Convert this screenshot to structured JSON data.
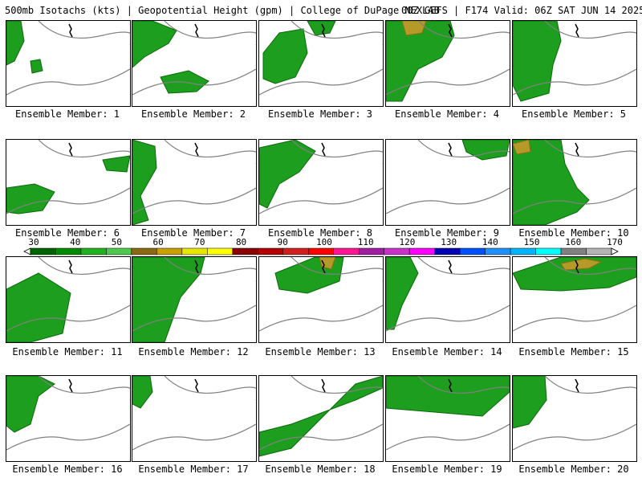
{
  "header": {
    "left_title": "500mb Isotachs (kts) | Geopotential Height (gpm) | College of DuPage NEXLAB",
    "right_title": "00Z GEFS | F174 Valid: 06Z SAT JUN 14 2025"
  },
  "colorbar": {
    "labels": [
      "30",
      "40",
      "50",
      "60",
      "70",
      "80",
      "90",
      "100",
      "110",
      "120",
      "130",
      "140",
      "150",
      "160",
      "170"
    ],
    "colors": [
      "#006400",
      "#008c00",
      "#20b020",
      "#50c850",
      "#8b6914",
      "#c8a000",
      "#e6e600",
      "#ffff00",
      "#8b0000",
      "#b40000",
      "#d21e1e",
      "#ff0000",
      "#ff1493",
      "#a01ea0",
      "#c832c8",
      "#ff00ff",
      "#0000b4",
      "#0050ff",
      "#1e90ff",
      "#00b4ff",
      "#00ffff",
      "#808080",
      "#b4b4b4"
    ]
  },
  "panels": [
    {
      "caption": "Ensemble Member: 1"
    },
    {
      "caption": "Ensemble Member: 2"
    },
    {
      "caption": "Ensemble Member: 3"
    },
    {
      "caption": "Ensemble Member: 4"
    },
    {
      "caption": "Ensemble Member: 5"
    },
    {
      "caption": "Ensemble Member: 6"
    },
    {
      "caption": "Ensemble Member: 7"
    },
    {
      "caption": "Ensemble Member: 8"
    },
    {
      "caption": "Ensemble Member: 9"
    },
    {
      "caption": "Ensemble Member: 10"
    },
    {
      "caption": "Ensemble Member: 11"
    },
    {
      "caption": "Ensemble Member: 12"
    },
    {
      "caption": "Ensemble Member: 13"
    },
    {
      "caption": "Ensemble Member: 14"
    },
    {
      "caption": "Ensemble Member: 15"
    },
    {
      "caption": "Ensemble Member: 16"
    },
    {
      "caption": "Ensemble Member: 17"
    },
    {
      "caption": "Ensemble Member: 18"
    },
    {
      "caption": "Ensemble Member: 19"
    },
    {
      "caption": "Ensemble Member: 20"
    }
  ]
}
